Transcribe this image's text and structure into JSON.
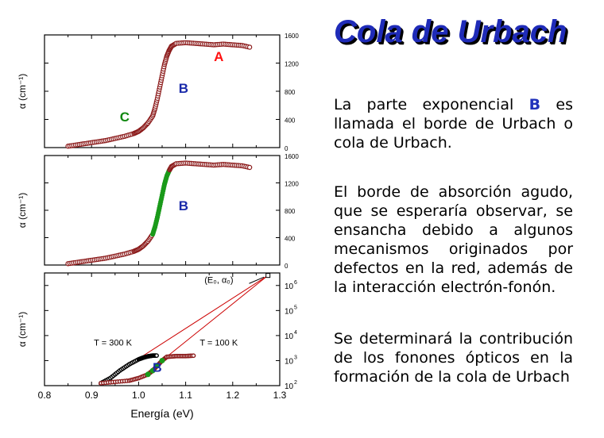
{
  "slide": {
    "title": "Cola de Urbach",
    "para1_pre": "La parte exponencial",
    "para1_letter": "B",
    "para1_post": "es llamada el borde de Urbach o cola de Urbach.",
    "para2": "El borde de absorción agudo, que se esperaría observar, se ensancha debido a algunos mecanismos originados por defectos en la red, además de la interacción electrón-fonón.",
    "para3": "Se determinará la contribución de los fonones ópticos en la formación de la cola de Urbach"
  },
  "colors": {
    "marker": "#8b1a1a",
    "green": "#1a9a1a",
    "label_a": "#ff1111",
    "label_b": "#1a2aaa",
    "label_c": "#118811",
    "line": "#cc0000",
    "title": "#1f2bb8"
  },
  "chart_data": [
    {
      "type": "scatter",
      "panel": "top",
      "ylabel": "α (cm⁻¹)",
      "y_ticks": [
        "0",
        "400",
        "800",
        "1200",
        "1600"
      ],
      "ylim": [
        0,
        1600
      ],
      "xlim": [
        0.8,
        1.3
      ],
      "labels": [
        {
          "text": "A",
          "x": 1.16,
          "y": 1230
        },
        {
          "text": "B",
          "x": 1.085,
          "y": 780
        },
        {
          "text": "C",
          "x": 0.96,
          "y": 370
        }
      ],
      "series": [
        {
          "x": [
            0.85,
            0.87,
            0.89,
            0.91,
            0.93,
            0.95,
            0.97,
            0.99,
            1.0,
            1.01,
            1.02,
            1.03,
            1.035,
            1.04,
            1.045,
            1.05,
            1.055,
            1.06,
            1.065,
            1.07,
            1.08,
            1.1,
            1.12,
            1.14,
            1.16,
            1.18,
            1.2,
            1.22,
            1.24
          ],
          "y": [
            20,
            40,
            60,
            80,
            100,
            130,
            160,
            200,
            230,
            280,
            350,
            450,
            560,
            700,
            860,
            1020,
            1180,
            1300,
            1380,
            1440,
            1480,
            1490,
            1480,
            1470,
            1460,
            1470,
            1460,
            1450,
            1420
          ]
        }
      ]
    },
    {
      "type": "scatter",
      "panel": "middle",
      "ylabel": "α (cm⁻¹)",
      "y_ticks": [
        "0",
        "400",
        "800",
        "1200",
        "1600"
      ],
      "ylim": [
        0,
        1600
      ],
      "xlim": [
        0.8,
        1.3
      ],
      "labels": [
        {
          "text": "B",
          "x": 1.085,
          "y": 800
        }
      ],
      "series": [
        {
          "x": [
            0.85,
            0.87,
            0.89,
            0.91,
            0.93,
            0.95,
            0.97,
            0.99,
            1.0,
            1.01,
            1.02,
            1.03,
            1.035,
            1.04,
            1.045,
            1.05,
            1.055,
            1.06,
            1.065,
            1.07,
            1.08,
            1.1,
            1.12,
            1.14,
            1.16,
            1.18,
            1.2,
            1.22,
            1.24
          ],
          "y": [
            20,
            40,
            60,
            80,
            100,
            130,
            160,
            200,
            230,
            280,
            350,
            450,
            560,
            700,
            860,
            1020,
            1180,
            1300,
            1380,
            1440,
            1480,
            1490,
            1480,
            1470,
            1460,
            1470,
            1460,
            1450,
            1420
          ],
          "highlight_x": [
            1.03,
            1.065
          ]
        }
      ]
    },
    {
      "type": "scatter",
      "panel": "bottom",
      "xlabel": "Energía (eV)",
      "ylabel": "α (cm⁻¹)",
      "x_ticks": [
        "0.8",
        "0.9",
        "1.0",
        "1.1",
        "1.2",
        "1.3"
      ],
      "y_ticks": [
        "10^2",
        "10^3",
        "10^4",
        "10^5",
        "10^6"
      ],
      "xlim": [
        0.8,
        1.3
      ],
      "ylim_log10": [
        2,
        6.5
      ],
      "annotations": [
        {
          "text": "T = 300 K",
          "x": 0.905,
          "y_log": 3.6
        },
        {
          "text": "T = 100 K",
          "x": 1.13,
          "y_log": 3.6
        },
        {
          "text": "(E₀, α₀)",
          "x": 1.14,
          "y_log": 6.1
        },
        {
          "text": "B",
          "x": 1.03,
          "y_log": 2.55
        }
      ],
      "point": {
        "x": 1.275,
        "y_log": 6.4
      },
      "series": [
        {
          "name": "T = 300 K",
          "x": [
            0.92,
            0.94,
            0.96,
            0.98,
            1.0,
            1.01,
            1.02,
            1.03,
            1.04
          ],
          "y_log": [
            2.1,
            2.3,
            2.6,
            2.85,
            3.05,
            3.12,
            3.17,
            3.2,
            3.2
          ]
        },
        {
          "name": "T = 100 K",
          "x": [
            0.92,
            0.95,
            0.98,
            1.0,
            1.02,
            1.03,
            1.04,
            1.05,
            1.06,
            1.08,
            1.1,
            1.12
          ],
          "y_log": [
            2.1,
            2.15,
            2.2,
            2.3,
            2.45,
            2.6,
            2.8,
            3.0,
            3.15,
            3.18,
            3.18,
            3.2
          ]
        }
      ]
    }
  ]
}
